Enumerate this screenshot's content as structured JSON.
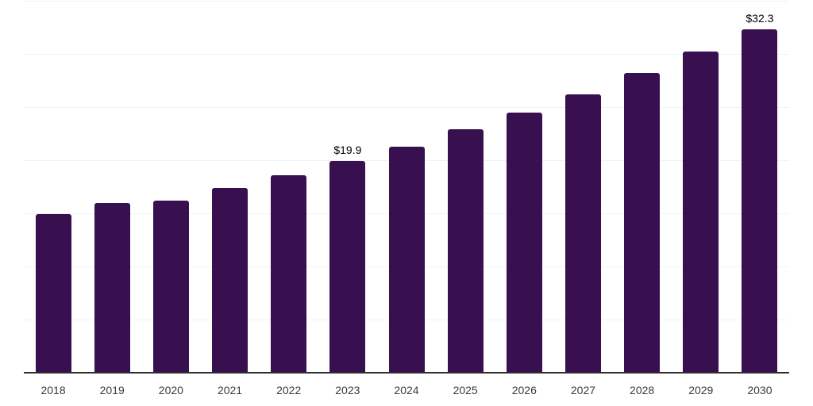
{
  "chart_data": {
    "type": "bar",
    "title": "",
    "xlabel": "",
    "ylabel": "",
    "categories": [
      "2018",
      "2019",
      "2020",
      "2021",
      "2022",
      "2023",
      "2024",
      "2025",
      "2026",
      "2027",
      "2028",
      "2029",
      "2030"
    ],
    "values": [
      14.9,
      16.0,
      16.2,
      17.4,
      18.6,
      19.9,
      21.3,
      22.9,
      24.5,
      26.2,
      28.2,
      30.2,
      32.3
    ],
    "value_prefix": "$",
    "labeled_points": [
      {
        "category": "2023",
        "label": "$19.9"
      },
      {
        "category": "2030",
        "label": "$32.3"
      }
    ],
    "ylim": [
      0,
      35
    ],
    "gridline_step": 5,
    "grid": "horizontal",
    "y_tick_labels_visible": false,
    "legend_position": "none"
  },
  "style": {
    "bar_color": "#38104F",
    "grid_color": "#f2f2f2",
    "axis_color": "#2b2b2b",
    "value_label_color": "#000000",
    "tick_label_color": "#3a3a3a",
    "background_color": "#ffffff"
  }
}
